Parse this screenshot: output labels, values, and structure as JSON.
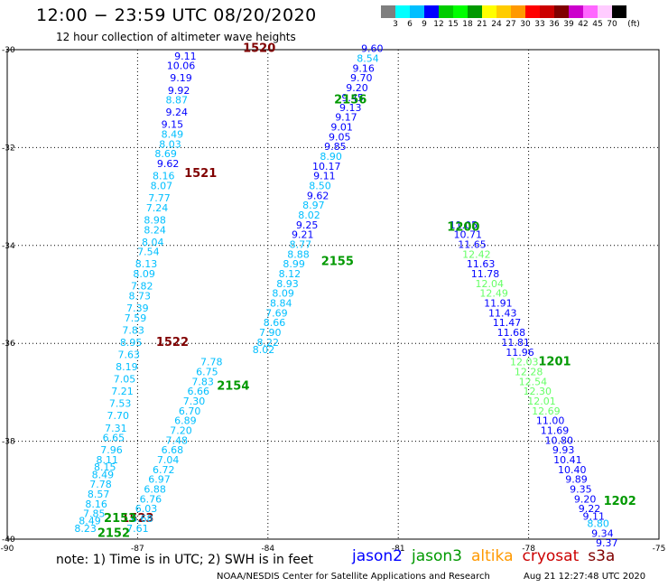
{
  "title": "12:00  −  23:59 UTC 08/20/2020",
  "subtitle": "12 hour collection of altimeter wave heights",
  "legend": {
    "unit": "(ft)",
    "colors": [
      "#7f7f7f",
      "#00ffff",
      "#00bfff",
      "#0000ff",
      "#00cc00",
      "#00ff00",
      "#009900",
      "#ffff00",
      "#ffcc00",
      "#ff9900",
      "#ff0000",
      "#cc0000",
      "#800000",
      "#cc00cc",
      "#ff66ff",
      "#ffccff",
      "#000000"
    ],
    "labels": [
      "3",
      "6",
      "9",
      "12",
      "15",
      "18",
      "21",
      "24",
      "27",
      "30",
      "33",
      "36",
      "39",
      "42",
      "45",
      "70"
    ]
  },
  "axes": {
    "y_labels": [
      "-30",
      "-32",
      "-34",
      "-36",
      "-38",
      "-40"
    ],
    "x_labels": [
      "-90",
      "-87",
      "-84",
      "-81",
      "-78",
      "-75"
    ]
  },
  "note": "note:  1) Time is in UTC; 2) SWH is in feet",
  "satellites": [
    {
      "name": "jason2",
      "color": "#0000ff"
    },
    {
      "name": "jason3",
      "color": "#009900"
    },
    {
      "name": "altika",
      "color": "#ff9900"
    },
    {
      "name": "cryosat",
      "color": "#cc0000"
    },
    {
      "name": "s3a",
      "color": "#800000"
    }
  ],
  "credit": "NOAA/NESDIS Center for Satellite Applications and Research",
  "timestamp": "Aug 21 12:27:48 UTC 2020",
  "tracks": [
    {
      "time": "1520",
      "color": "#800000",
      "lon": -84.2,
      "lat": -30.05,
      "points": [
        {
          "lon": -85.9,
          "lat": -30.2,
          "v": "9.11",
          "c": "#0000ff"
        },
        {
          "lon": -86.0,
          "lat": -30.4,
          "v": "10.06",
          "c": "#0000ff"
        },
        {
          "lon": -86.0,
          "lat": -30.65,
          "v": "9.19",
          "c": "#0000ff"
        },
        {
          "lon": -86.05,
          "lat": -30.9,
          "v": "9.92",
          "c": "#0000ff"
        },
        {
          "lon": -86.1,
          "lat": -31.1,
          "v": "8.87",
          "c": "#00bfff"
        },
        {
          "lon": -86.1,
          "lat": -31.35,
          "v": "9.24",
          "c": "#0000ff"
        },
        {
          "lon": -86.2,
          "lat": -31.6,
          "v": "9.15",
          "c": "#0000ff"
        },
        {
          "lon": -86.2,
          "lat": -31.8,
          "v": "8.49",
          "c": "#00bfff"
        },
        {
          "lon": -86.25,
          "lat": -32.0,
          "v": "8.03",
          "c": "#00bfff"
        },
        {
          "lon": -86.35,
          "lat": -32.2,
          "v": "8.69",
          "c": "#00bfff"
        },
        {
          "lon": -86.3,
          "lat": -32.4,
          "v": "9.62",
          "c": "#0000ff"
        },
        {
          "lon": -86.4,
          "lat": -32.65,
          "v": "8.16",
          "c": "#00bfff"
        },
        {
          "lon": -86.45,
          "lat": -32.85,
          "v": "8.07",
          "c": "#00bfff"
        },
        {
          "lon": -86.5,
          "lat": -33.1,
          "v": "7.77",
          "c": "#00bfff"
        },
        {
          "lon": -86.55,
          "lat": -33.3,
          "v": "7.24",
          "c": "#00bfff"
        },
        {
          "lon": -86.6,
          "lat": -33.55,
          "v": "8.98",
          "c": "#00bfff"
        },
        {
          "lon": -86.6,
          "lat": -33.75,
          "v": "8.24",
          "c": "#00bfff"
        },
        {
          "lon": -86.65,
          "lat": -34.0,
          "v": "8.04",
          "c": "#00bfff"
        },
        {
          "lon": -86.75,
          "lat": -34.2,
          "v": "7.54",
          "c": "#00bfff"
        },
        {
          "lon": -86.8,
          "lat": -34.45,
          "v": "8.13",
          "c": "#00bfff"
        },
        {
          "lon": -86.85,
          "lat": -34.65,
          "v": "8.09",
          "c": "#00bfff"
        },
        {
          "lon": -86.9,
          "lat": -34.9,
          "v": "7.82",
          "c": "#00bfff"
        },
        {
          "lon": -86.95,
          "lat": -35.1,
          "v": "8.73",
          "c": "#00bfff"
        },
        {
          "lon": -87.0,
          "lat": -35.35,
          "v": "7.39",
          "c": "#00bfff"
        },
        {
          "lon": -87.05,
          "lat": -35.55,
          "v": "7.59",
          "c": "#00bfff"
        },
        {
          "lon": -87.1,
          "lat": -35.8,
          "v": "7.83",
          "c": "#00bfff"
        },
        {
          "lon": -87.15,
          "lat": -36.05,
          "v": "8.95",
          "c": "#00bfff"
        },
        {
          "lon": -87.2,
          "lat": -36.3,
          "v": "7.63",
          "c": "#00bfff"
        },
        {
          "lon": -87.25,
          "lat": -36.55,
          "v": "8.19",
          "c": "#00bfff"
        },
        {
          "lon": -87.3,
          "lat": -36.8,
          "v": "7.05",
          "c": "#00bfff"
        },
        {
          "lon": -87.35,
          "lat": -37.05,
          "v": "7.21",
          "c": "#00bfff"
        },
        {
          "lon": -87.4,
          "lat": -37.3,
          "v": "7.53",
          "c": "#00bfff"
        },
        {
          "lon": -87.45,
          "lat": -37.55,
          "v": "7.70",
          "c": "#00bfff"
        },
        {
          "lon": -87.5,
          "lat": -37.8,
          "v": "7.31",
          "c": "#00bfff"
        },
        {
          "lon": -87.55,
          "lat": -38.0,
          "v": "6.65",
          "c": "#00bfff"
        },
        {
          "lon": -87.6,
          "lat": -38.25,
          "v": "7.96",
          "c": "#00bfff"
        },
        {
          "lon": -87.7,
          "lat": -38.45,
          "v": "8.11",
          "c": "#00bfff"
        },
        {
          "lon": -87.75,
          "lat": -38.6,
          "v": "8.15",
          "c": "#00bfff"
        },
        {
          "lon": -87.8,
          "lat": -38.75,
          "v": "8.49",
          "c": "#00bfff"
        },
        {
          "lon": -87.85,
          "lat": -38.95,
          "v": "7.78",
          "c": "#00bfff"
        },
        {
          "lon": -87.9,
          "lat": -39.15,
          "v": "8.57",
          "c": "#00bfff"
        },
        {
          "lon": -87.95,
          "lat": -39.35,
          "v": "8.16",
          "c": "#00bfff"
        },
        {
          "lon": -88.0,
          "lat": -39.55,
          "v": "7.85",
          "c": "#00bfff"
        },
        {
          "lon": -88.1,
          "lat": -39.7,
          "v": "8.49",
          "c": "#00bfff"
        },
        {
          "lon": -88.2,
          "lat": -39.85,
          "v": "8.23",
          "c": "#00bfff"
        }
      ]
    },
    {
      "time": "1521",
      "color": "#800000",
      "lon": -85.55,
      "lat": -32.6,
      "points": []
    },
    {
      "time": "1522",
      "color": "#800000",
      "lon": -86.2,
      "lat": -36.05,
      "points": []
    },
    {
      "time": "1523",
      "color": "#800000",
      "lon": -87.0,
      "lat": -39.65,
      "points": []
    },
    {
      "time": "2156",
      "color": "#009900",
      "lon": -82.1,
      "lat": -31.1,
      "points": [
        {
          "lon": -81.6,
          "lat": -30.05,
          "v": "9.60",
          "c": "#0000ff"
        },
        {
          "lon": -81.7,
          "lat": -30.25,
          "v": "8.54",
          "c": "#00bfff"
        },
        {
          "lon": -81.8,
          "lat": -30.45,
          "v": "9.16",
          "c": "#0000ff"
        },
        {
          "lon": -81.85,
          "lat": -30.65,
          "v": "9.70",
          "c": "#0000ff"
        },
        {
          "lon": -81.95,
          "lat": -30.85,
          "v": "9.20",
          "c": "#0000ff"
        },
        {
          "lon": -82.05,
          "lat": -31.05,
          "v": "9.45",
          "c": "#0000ff"
        },
        {
          "lon": -82.1,
          "lat": -31.25,
          "v": "9.13",
          "c": "#0000ff"
        },
        {
          "lon": -82.2,
          "lat": -31.45,
          "v": "9.17",
          "c": "#0000ff"
        },
        {
          "lon": -82.3,
          "lat": -31.65,
          "v": "9.01",
          "c": "#0000ff"
        },
        {
          "lon": -82.35,
          "lat": -31.85,
          "v": "9.05",
          "c": "#0000ff"
        },
        {
          "lon": -82.45,
          "lat": -32.05,
          "v": "9.85",
          "c": "#0000ff"
        },
        {
          "lon": -82.55,
          "lat": -32.25,
          "v": "8.90",
          "c": "#00bfff"
        },
        {
          "lon": -82.65,
          "lat": -32.45,
          "v": "10.17",
          "c": "#0000ff"
        },
        {
          "lon": -82.7,
          "lat": -32.65,
          "v": "9.11",
          "c": "#0000ff"
        },
        {
          "lon": -82.8,
          "lat": -32.85,
          "v": "8.50",
          "c": "#00bfff"
        },
        {
          "lon": -82.85,
          "lat": -33.05,
          "v": "9.62",
          "c": "#0000ff"
        },
        {
          "lon": -82.95,
          "lat": -33.25,
          "v": "8.97",
          "c": "#00bfff"
        },
        {
          "lon": -83.05,
          "lat": -33.45,
          "v": "8.02",
          "c": "#00bfff"
        },
        {
          "lon": -83.1,
          "lat": -33.65,
          "v": "9.25",
          "c": "#0000ff"
        },
        {
          "lon": -83.2,
          "lat": -33.85,
          "v": "9.21",
          "c": "#0000ff"
        },
        {
          "lon": -83.25,
          "lat": -34.05,
          "v": "8.77",
          "c": "#00bfff"
        },
        {
          "lon": -83.3,
          "lat": -34.25,
          "v": "8.88",
          "c": "#00bfff"
        },
        {
          "lon": -83.4,
          "lat": -34.45,
          "v": "8.99",
          "c": "#00bfff"
        },
        {
          "lon": -83.5,
          "lat": -34.65,
          "v": "8.12",
          "c": "#00bfff"
        },
        {
          "lon": -83.55,
          "lat": -34.85,
          "v": "8.93",
          "c": "#00bfff"
        },
        {
          "lon": -83.65,
          "lat": -35.05,
          "v": "8.09",
          "c": "#00bfff"
        },
        {
          "lon": -83.7,
          "lat": -35.25,
          "v": "8.84",
          "c": "#00bfff"
        },
        {
          "lon": -83.8,
          "lat": -35.45,
          "v": "7.69",
          "c": "#00bfff"
        },
        {
          "lon": -83.85,
          "lat": -35.65,
          "v": "8.66",
          "c": "#00bfff"
        },
        {
          "lon": -83.95,
          "lat": -35.85,
          "v": "7.90",
          "c": "#00bfff"
        },
        {
          "lon": -84.0,
          "lat": -36.05,
          "v": "8.22",
          "c": "#00bfff"
        },
        {
          "lon": -84.1,
          "lat": -36.2,
          "v": "8.02",
          "c": "#00bfff"
        }
      ]
    },
    {
      "time": "2155",
      "color": "#009900",
      "lon": -82.4,
      "lat": -34.4,
      "points": []
    },
    {
      "time": "2154",
      "color": "#009900",
      "lon": -84.8,
      "lat": -36.95,
      "points": []
    },
    {
      "time": "2153",
      "color": "#009900",
      "lon": -87.4,
      "lat": -39.65,
      "points": [
        {
          "lon": -85.3,
          "lat": -36.45,
          "v": "7.78",
          "c": "#00bfff"
        },
        {
          "lon": -85.4,
          "lat": -36.65,
          "v": "6.75",
          "c": "#00bfff"
        },
        {
          "lon": -85.5,
          "lat": -36.85,
          "v": "7.83",
          "c": "#00bfff"
        },
        {
          "lon": -85.6,
          "lat": -37.05,
          "v": "6.66",
          "c": "#00bfff"
        },
        {
          "lon": -85.7,
          "lat": -37.25,
          "v": "7.30",
          "c": "#00bfff"
        },
        {
          "lon": -85.8,
          "lat": -37.45,
          "v": "6.70",
          "c": "#00bfff"
        },
        {
          "lon": -85.9,
          "lat": -37.65,
          "v": "6.89",
          "c": "#00bfff"
        },
        {
          "lon": -86.0,
          "lat": -37.85,
          "v": "7.20",
          "c": "#00bfff"
        },
        {
          "lon": -86.1,
          "lat": -38.05,
          "v": "7.48",
          "c": "#00bfff"
        },
        {
          "lon": -86.2,
          "lat": -38.25,
          "v": "6.68",
          "c": "#00bfff"
        },
        {
          "lon": -86.3,
          "lat": -38.45,
          "v": "7.04",
          "c": "#00bfff"
        },
        {
          "lon": -86.4,
          "lat": -38.65,
          "v": "6.72",
          "c": "#00bfff"
        },
        {
          "lon": -86.5,
          "lat": -38.85,
          "v": "6.97",
          "c": "#00bfff"
        },
        {
          "lon": -86.6,
          "lat": -39.05,
          "v": "6.88",
          "c": "#00bfff"
        },
        {
          "lon": -86.7,
          "lat": -39.25,
          "v": "6.76",
          "c": "#00bfff"
        },
        {
          "lon": -86.8,
          "lat": -39.45,
          "v": "6.03",
          "c": "#00bfff"
        },
        {
          "lon": -86.9,
          "lat": -39.65,
          "v": "6.68",
          "c": "#00bfff"
        },
        {
          "lon": -87.0,
          "lat": -39.85,
          "v": "7.61",
          "c": "#00bfff"
        }
      ]
    },
    {
      "time": "2152",
      "color": "#009900",
      "lon": -87.55,
      "lat": -39.95,
      "points": []
    },
    {
      "time": "1200",
      "color": "#009900",
      "lon": -79.5,
      "lat": -33.7,
      "points": [
        {
          "lon": -79.5,
          "lat": -33.65,
          "v": "11.05",
          "c": "#0000ff"
        },
        {
          "lon": -79.4,
          "lat": -33.85,
          "v": "10.71",
          "c": "#0000ff"
        },
        {
          "lon": -79.3,
          "lat": -34.05,
          "v": "11.65",
          "c": "#0000ff"
        },
        {
          "lon": -79.2,
          "lat": -34.25,
          "v": "12.42",
          "c": "#66ff66"
        },
        {
          "lon": -79.1,
          "lat": -34.45,
          "v": "11.63",
          "c": "#0000ff"
        },
        {
          "lon": -79.0,
          "lat": -34.65,
          "v": "11.78",
          "c": "#0000ff"
        },
        {
          "lon": -78.9,
          "lat": -34.85,
          "v": "12.04",
          "c": "#66ff66"
        },
        {
          "lon": -78.8,
          "lat": -35.05,
          "v": "12.49",
          "c": "#66ff66"
        },
        {
          "lon": -78.7,
          "lat": -35.25,
          "v": "11.91",
          "c": "#0000ff"
        },
        {
          "lon": -78.6,
          "lat": -35.45,
          "v": "11.43",
          "c": "#0000ff"
        },
        {
          "lon": -78.5,
          "lat": -35.65,
          "v": "11.47",
          "c": "#0000ff"
        },
        {
          "lon": -78.4,
          "lat": -35.85,
          "v": "11.68",
          "c": "#0000ff"
        },
        {
          "lon": -78.3,
          "lat": -36.05,
          "v": "11.81",
          "c": "#0000ff"
        },
        {
          "lon": -78.2,
          "lat": -36.25,
          "v": "11.96",
          "c": "#0000ff"
        },
        {
          "lon": -78.1,
          "lat": -36.45,
          "v": "12.03",
          "c": "#66ff66"
        },
        {
          "lon": -78.0,
          "lat": -36.65,
          "v": "12.28",
          "c": "#66ff66"
        },
        {
          "lon": -77.9,
          "lat": -36.85,
          "v": "12.54",
          "c": "#66ff66"
        },
        {
          "lon": -77.8,
          "lat": -37.05,
          "v": "12.30",
          "c": "#66ff66"
        },
        {
          "lon": -77.7,
          "lat": -37.25,
          "v": "12.01",
          "c": "#66ff66"
        },
        {
          "lon": -77.6,
          "lat": -37.45,
          "v": "12.69",
          "c": "#66ff66"
        },
        {
          "lon": -77.5,
          "lat": -37.65,
          "v": "11.00",
          "c": "#0000ff"
        },
        {
          "lon": -77.4,
          "lat": -37.85,
          "v": "11.69",
          "c": "#0000ff"
        },
        {
          "lon": -77.3,
          "lat": -38.05,
          "v": "10.80",
          "c": "#0000ff"
        },
        {
          "lon": -77.2,
          "lat": -38.25,
          "v": "9.93",
          "c": "#0000ff"
        },
        {
          "lon": -77.1,
          "lat": -38.45,
          "v": "10.41",
          "c": "#0000ff"
        },
        {
          "lon": -77.0,
          "lat": -38.65,
          "v": "10.40",
          "c": "#0000ff"
        },
        {
          "lon": -76.9,
          "lat": -38.85,
          "v": "9.89",
          "c": "#0000ff"
        },
        {
          "lon": -76.8,
          "lat": -39.05,
          "v": "9.35",
          "c": "#0000ff"
        },
        {
          "lon": -76.7,
          "lat": -39.25,
          "v": "9.20",
          "c": "#0000ff"
        },
        {
          "lon": -76.6,
          "lat": -39.45,
          "v": "9.22",
          "c": "#0000ff"
        },
        {
          "lon": -76.5,
          "lat": -39.6,
          "v": "9.11",
          "c": "#0000ff"
        },
        {
          "lon": -76.4,
          "lat": -39.75,
          "v": "8.80",
          "c": "#00bfff"
        },
        {
          "lon": -76.3,
          "lat": -39.95,
          "v": "9.34",
          "c": "#0000ff"
        },
        {
          "lon": -76.2,
          "lat": -40.15,
          "v": "9.37",
          "c": "#0000ff"
        }
      ]
    },
    {
      "time": "1201",
      "color": "#009900",
      "lon": -77.4,
      "lat": -36.45,
      "points": []
    },
    {
      "time": "1202",
      "color": "#009900",
      "lon": -75.9,
      "lat": -39.3,
      "points": []
    }
  ]
}
